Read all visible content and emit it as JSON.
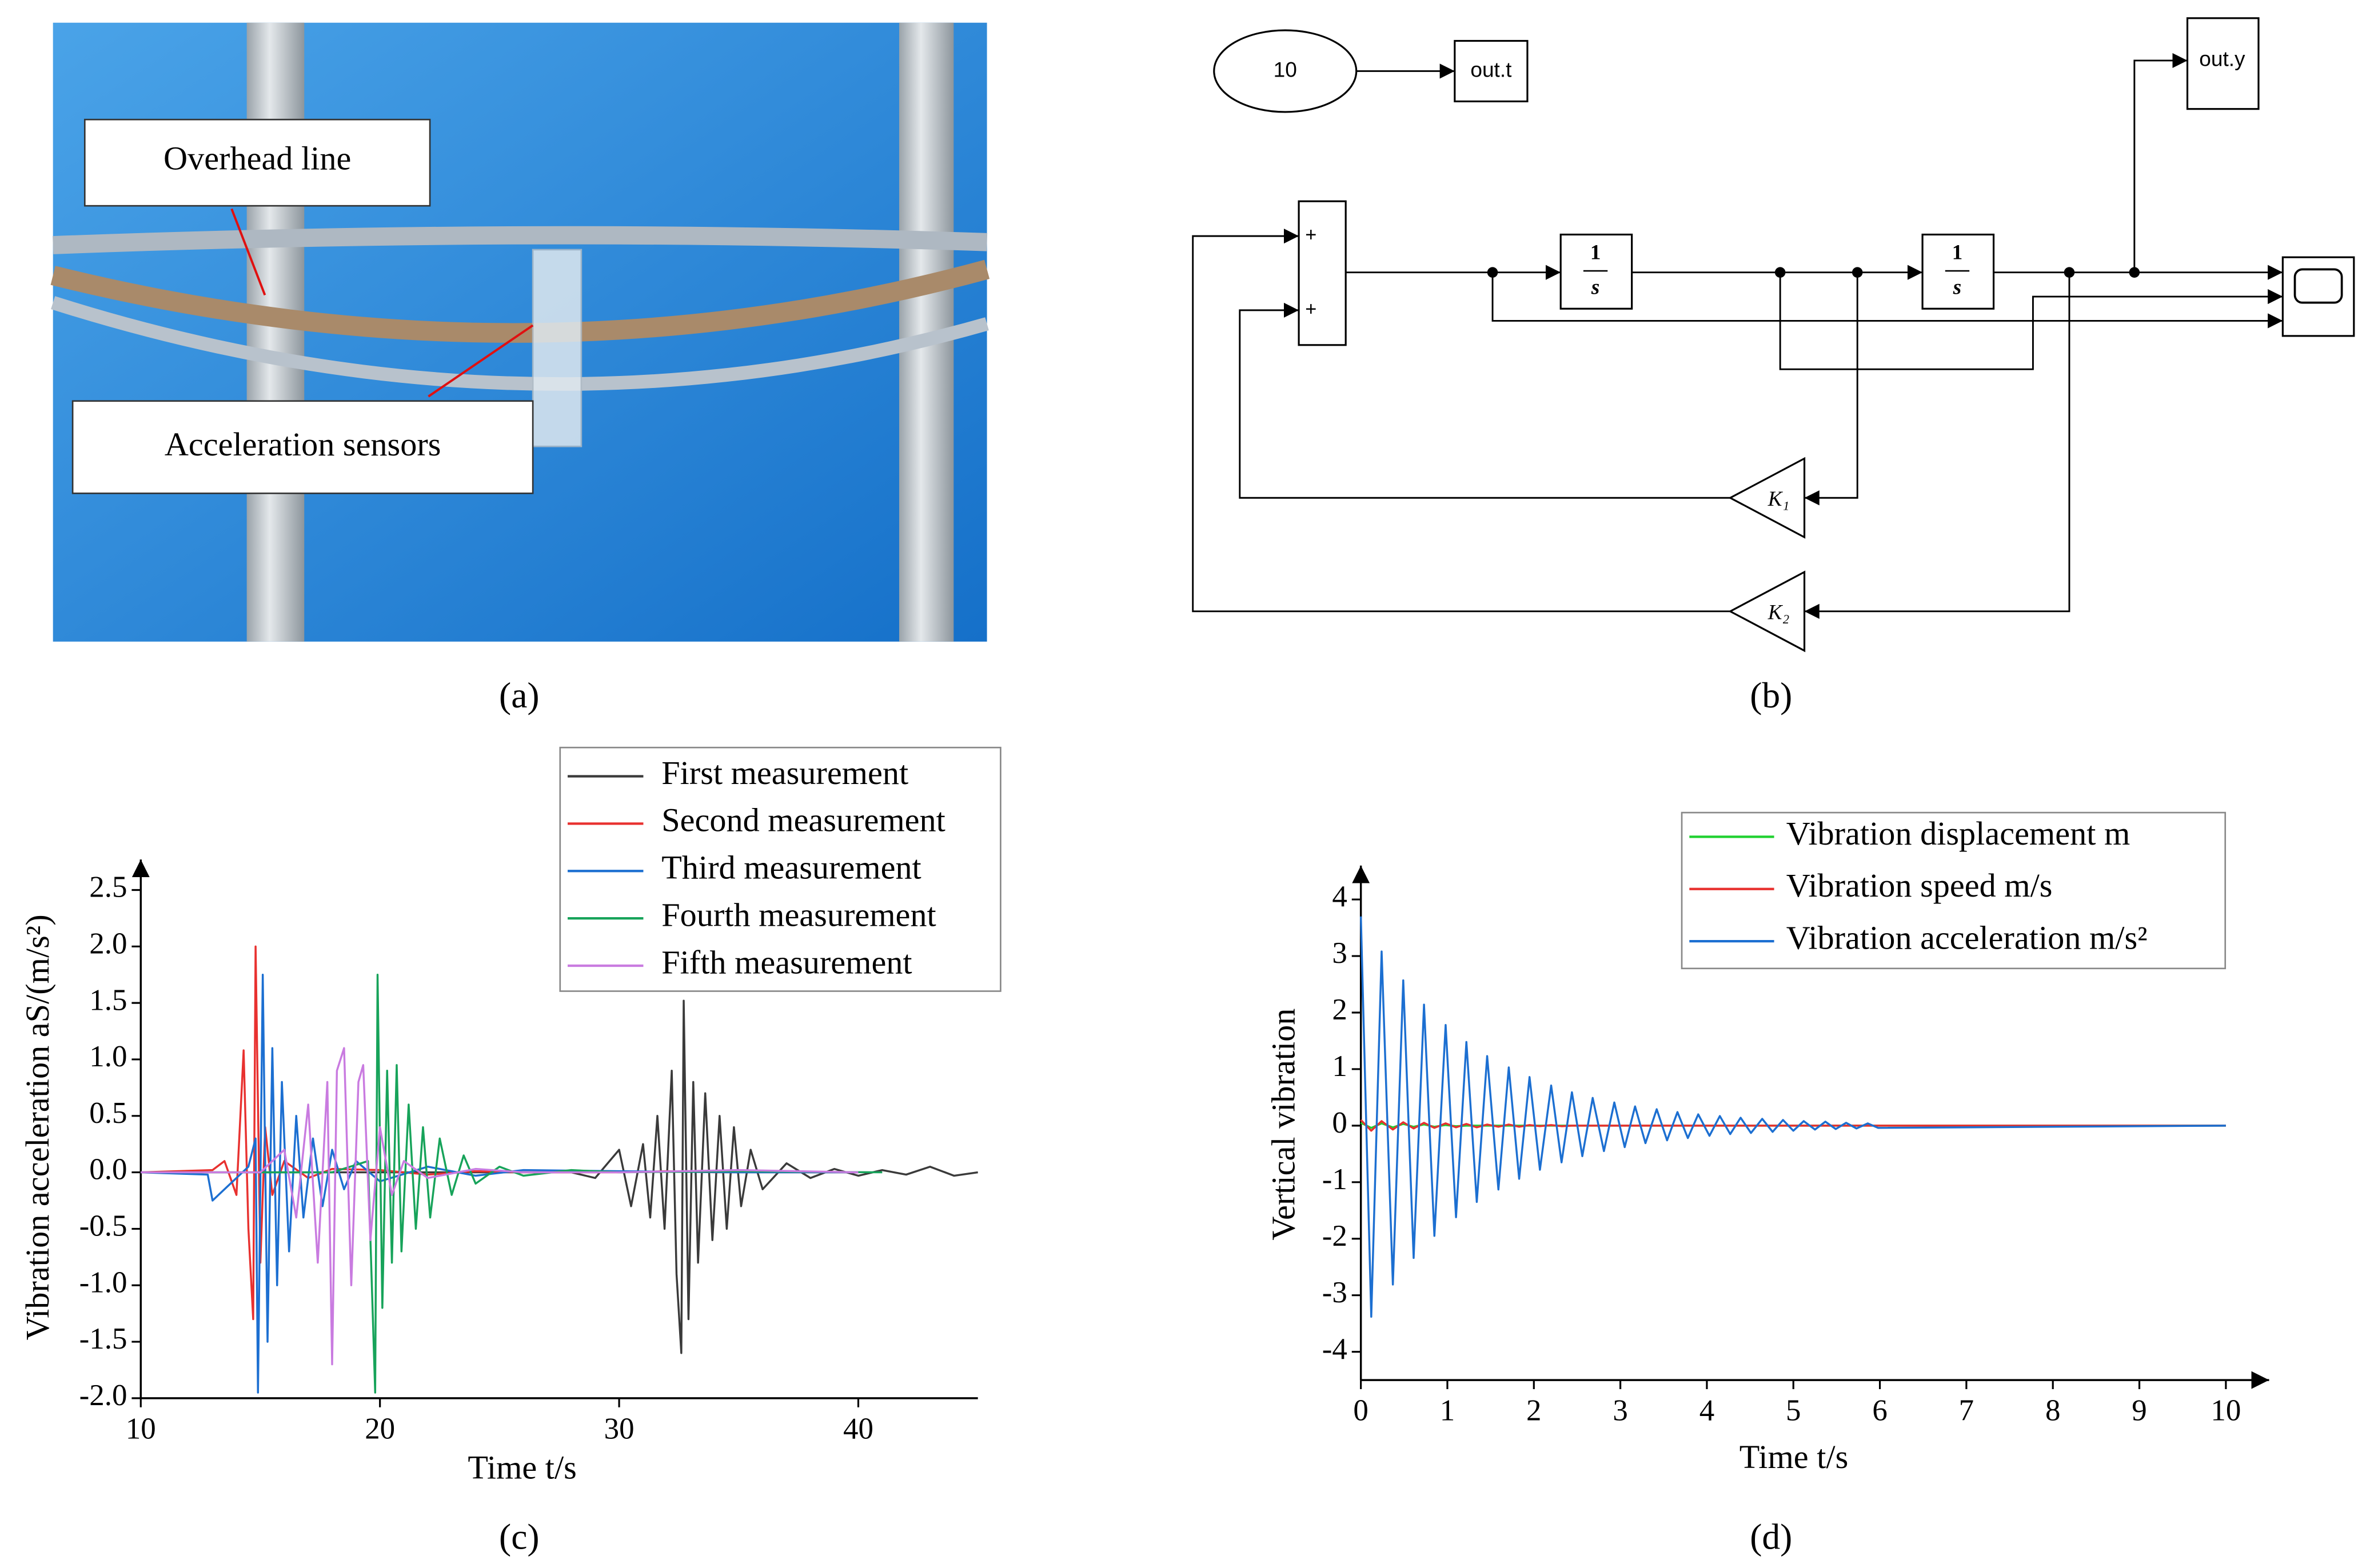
{
  "photo": {
    "labels": [
      "Overhead line",
      "Acceleration sensors"
    ]
  },
  "diagram": {
    "constant": "10",
    "outputs": [
      "out.t",
      "out.y"
    ],
    "sum_signs": [
      "+",
      "+"
    ],
    "integrators": [
      {
        "num": "1",
        "den": "s"
      },
      {
        "num": "1",
        "den": "s"
      }
    ],
    "gains": [
      "K₁",
      "K₂"
    ]
  },
  "captions": [
    "(a)",
    "(b)",
    "(c)",
    "(d)"
  ],
  "chart_data": [
    {
      "type": "line",
      "xlabel": "Time t/s",
      "ylabel": "Vibration acceleration aS/(m/s²)",
      "xlim": [
        10,
        45
      ],
      "ylim": [
        -2.0,
        2.77
      ],
      "xticks": [
        10,
        20,
        30,
        40
      ],
      "yticks": [
        {
          "value": -2,
          "label": "-2.0"
        },
        -1.5,
        {
          "value": -1,
          "label": "-1.0"
        },
        -0.5,
        {
          "value": 0,
          "label": "0.0"
        },
        0.5,
        {
          "value": 1,
          "label": "1.0"
        },
        1.5,
        {
          "value": 2,
          "label": "2.0"
        },
        2.5
      ],
      "legend": "upper right",
      "series": [
        {
          "name": "First measurement",
          "color": "#3a3a3a",
          "x": [
            10,
            28,
            29,
            30,
            30.5,
            31,
            31.3,
            31.6,
            31.9,
            32.2,
            32.4,
            32.6,
            32.7,
            32.9,
            33.1,
            33.3,
            33.6,
            33.9,
            34.2,
            34.5,
            34.8,
            35.1,
            35.5,
            36,
            37,
            38,
            39,
            40,
            41,
            42,
            43,
            44,
            45
          ],
          "values": [
            0,
            0,
            -0.05,
            0.2,
            -0.3,
            0.25,
            -0.4,
            0.5,
            -0.5,
            0.9,
            -0.9,
            -1.6,
            1.52,
            -1.3,
            0.8,
            -0.8,
            0.7,
            -0.6,
            0.5,
            -0.5,
            0.4,
            -0.3,
            0.2,
            -0.15,
            0.08,
            -0.05,
            0.03,
            -0.03,
            0.02,
            -0.02,
            0.05,
            -0.03,
            0
          ]
        },
        {
          "name": "Second measurement",
          "color": "#e8312f",
          "x": [
            10,
            13,
            13.5,
            14,
            14.3,
            14.5,
            14.7,
            14.8,
            15,
            15.2,
            15.5,
            16,
            17,
            18,
            20,
            22,
            24,
            26,
            28,
            30,
            32,
            34,
            36,
            38,
            40
          ],
          "values": [
            0,
            0.02,
            0.1,
            -0.2,
            1.08,
            -0.5,
            -1.3,
            2.0,
            -0.8,
            0.4,
            -0.2,
            0.1,
            -0.05,
            0.03,
            0.02,
            -0.02,
            0.01,
            0,
            0,
            0,
            0.01,
            0,
            0,
            0,
            0
          ]
        },
        {
          "name": "Third measurement",
          "color": "#1c6fd1",
          "x": [
            10,
            12.8,
            13,
            14.5,
            14.8,
            14.9,
            15.1,
            15.3,
            15.5,
            15.7,
            15.9,
            16.2,
            16.5,
            16.8,
            17.2,
            17.6,
            18,
            18.5,
            19,
            20,
            22,
            24,
            26,
            30,
            35,
            40
          ],
          "values": [
            0,
            -0.02,
            -0.25,
            0.05,
            0.3,
            -1.95,
            1.75,
            -1.5,
            1.1,
            -1.0,
            0.8,
            -0.7,
            0.5,
            -0.4,
            0.3,
            -0.3,
            0.2,
            -0.15,
            0.1,
            -0.08,
            0.05,
            -0.03,
            0.02,
            0.01,
            0,
            0
          ]
        },
        {
          "name": "Fourth measurement",
          "color": "#17a35a",
          "x": [
            10,
            18,
            19.5,
            19.8,
            19.9,
            20.1,
            20.3,
            20.5,
            20.7,
            20.9,
            21.2,
            21.5,
            21.8,
            22.1,
            22.5,
            23,
            23.5,
            24,
            25,
            26,
            28,
            30,
            35,
            41
          ],
          "values": [
            0,
            0,
            0.1,
            -1.95,
            1.75,
            -1.2,
            0.9,
            -0.8,
            0.95,
            -0.7,
            0.6,
            -0.5,
            0.4,
            -0.4,
            0.3,
            -0.2,
            0.15,
            -0.1,
            0.05,
            -0.03,
            0.02,
            0,
            0.01,
            0
          ]
        },
        {
          "name": "Fifth measurement",
          "color": "#c97be0",
          "x": [
            10,
            15,
            16,
            16.5,
            17,
            17.4,
            17.8,
            18,
            18.2,
            18.5,
            18.8,
            19.1,
            19.3,
            19.6,
            20,
            20.5,
            21,
            22,
            24,
            26,
            30,
            35,
            40
          ],
          "values": [
            0,
            0,
            0.2,
            -0.4,
            0.6,
            -0.8,
            0.8,
            -1.7,
            0.9,
            1.1,
            -1.0,
            0.8,
            0.95,
            -0.6,
            0.4,
            -0.2,
            0.1,
            -0.05,
            0.03,
            0,
            0,
            0.02,
            0
          ]
        }
      ]
    },
    {
      "type": "line",
      "xlabel": "Time t/s",
      "ylabel": "Vertical vibration",
      "xlim": [
        0,
        10.5
      ],
      "ylim": [
        -4.5,
        4.6
      ],
      "xticks": [
        0,
        1,
        2,
        3,
        4,
        5,
        6,
        7,
        8,
        9,
        10
      ],
      "yticks": [
        -4,
        -3,
        -2,
        -1,
        0,
        1,
        2,
        3,
        4
      ],
      "legend": "upper right",
      "x": [
        0,
        0.12,
        0.24,
        0.37,
        0.49,
        0.61,
        0.73,
        0.85,
        0.98,
        1.1,
        1.22,
        1.34,
        1.46,
        1.59,
        1.71,
        1.83,
        1.95,
        2.07,
        2.2,
        2.32,
        2.44,
        2.56,
        2.68,
        2.81,
        2.93,
        3.05,
        3.17,
        3.29,
        3.42,
        3.54,
        3.66,
        3.78,
        3.9,
        4.03,
        4.15,
        4.27,
        4.39,
        4.51,
        4.64,
        4.76,
        4.88,
        5.0,
        5.12,
        5.25,
        5.37,
        5.49,
        5.61,
        5.73,
        5.86,
        5.98,
        10
      ],
      "series": [
        {
          "name": "Vibration displacement m",
          "color": "#1fd12f",
          "values": [
            0.05,
            -0.04,
            0.04,
            -0.03,
            0.03,
            -0.02,
            0.02,
            -0.02,
            0.01,
            -0.01,
            0,
            0,
            0,
            0,
            0,
            0,
            0,
            0,
            0,
            0,
            0,
            0,
            0,
            0,
            0,
            0,
            0,
            0,
            0,
            0,
            0,
            0,
            0,
            0,
            0,
            0,
            0,
            0,
            0,
            0,
            0,
            0,
            0,
            0,
            0,
            0,
            0,
            0,
            0,
            0,
            0
          ]
        },
        {
          "name": "Vibration speed m/s",
          "color": "#e8312f",
          "values": [
            0.1,
            -0.09,
            0.08,
            -0.07,
            0.06,
            -0.05,
            0.05,
            -0.04,
            0.04,
            -0.03,
            0.03,
            -0.03,
            0.02,
            -0.02,
            0.02,
            -0.02,
            0.01,
            -0.01,
            0.01,
            -0.01,
            0,
            0,
            0,
            0,
            0,
            0,
            0,
            0,
            0,
            0,
            0,
            0,
            0,
            0,
            0,
            0,
            0,
            0,
            0,
            0,
            0,
            0,
            0,
            0,
            0,
            0,
            0,
            0,
            0,
            0,
            0
          ]
        },
        {
          "name": "Vibration acceleration m/s²",
          "color": "#1c6fd1",
          "values": [
            3.7,
            -3.38,
            3.08,
            -2.81,
            2.57,
            -2.34,
            2.14,
            -1.95,
            1.78,
            -1.62,
            1.48,
            -1.35,
            1.23,
            -1.13,
            1.03,
            -0.94,
            0.86,
            -0.78,
            0.71,
            -0.65,
            0.59,
            -0.54,
            0.49,
            -0.45,
            0.41,
            -0.38,
            0.34,
            -0.31,
            0.29,
            -0.26,
            0.24,
            -0.22,
            0.2,
            -0.18,
            0.17,
            -0.15,
            0.14,
            -0.13,
            0.12,
            -0.11,
            0.1,
            -0.09,
            0.08,
            -0.07,
            0.07,
            -0.06,
            0.05,
            -0.05,
            0.04,
            -0.04,
            0
          ]
        }
      ]
    }
  ]
}
